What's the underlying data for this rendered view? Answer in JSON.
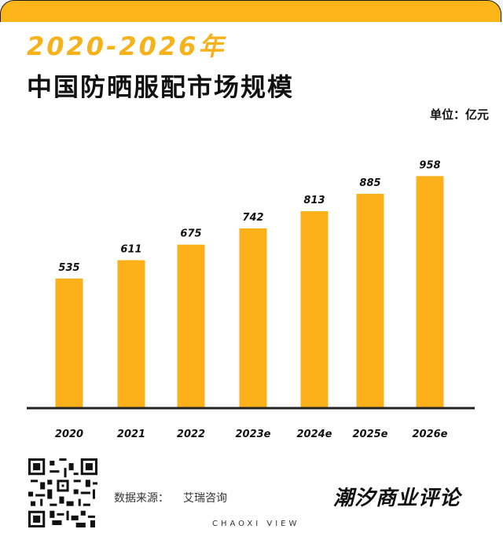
{
  "header": {
    "years": "2020-2026年",
    "title": "中国防晒服配市场规模",
    "unit": "单位：亿元"
  },
  "chart_data": {
    "type": "bar",
    "categories": [
      "2020",
      "2021",
      "2022",
      "2023e",
      "2024e",
      "2025e",
      "2026e"
    ],
    "values": [
      535,
      611,
      675,
      742,
      813,
      885,
      958
    ],
    "data_labels": [
      "535",
      "611",
      "675",
      "742",
      "813",
      "885",
      "958"
    ],
    "title": "中国防晒服配市场规模",
    "xlabel": "",
    "ylabel": "",
    "unit": "亿元",
    "grid": false,
    "bar_color": "#fdb01a"
  },
  "footer": {
    "source_label": "数据来源：",
    "source_value": "艾瑞咨询",
    "brand": "潮汐商业评论",
    "brand_en": "CHAOXI VIEW"
  },
  "colors": {
    "accent": "#fdb61a",
    "text": "#111111"
  }
}
